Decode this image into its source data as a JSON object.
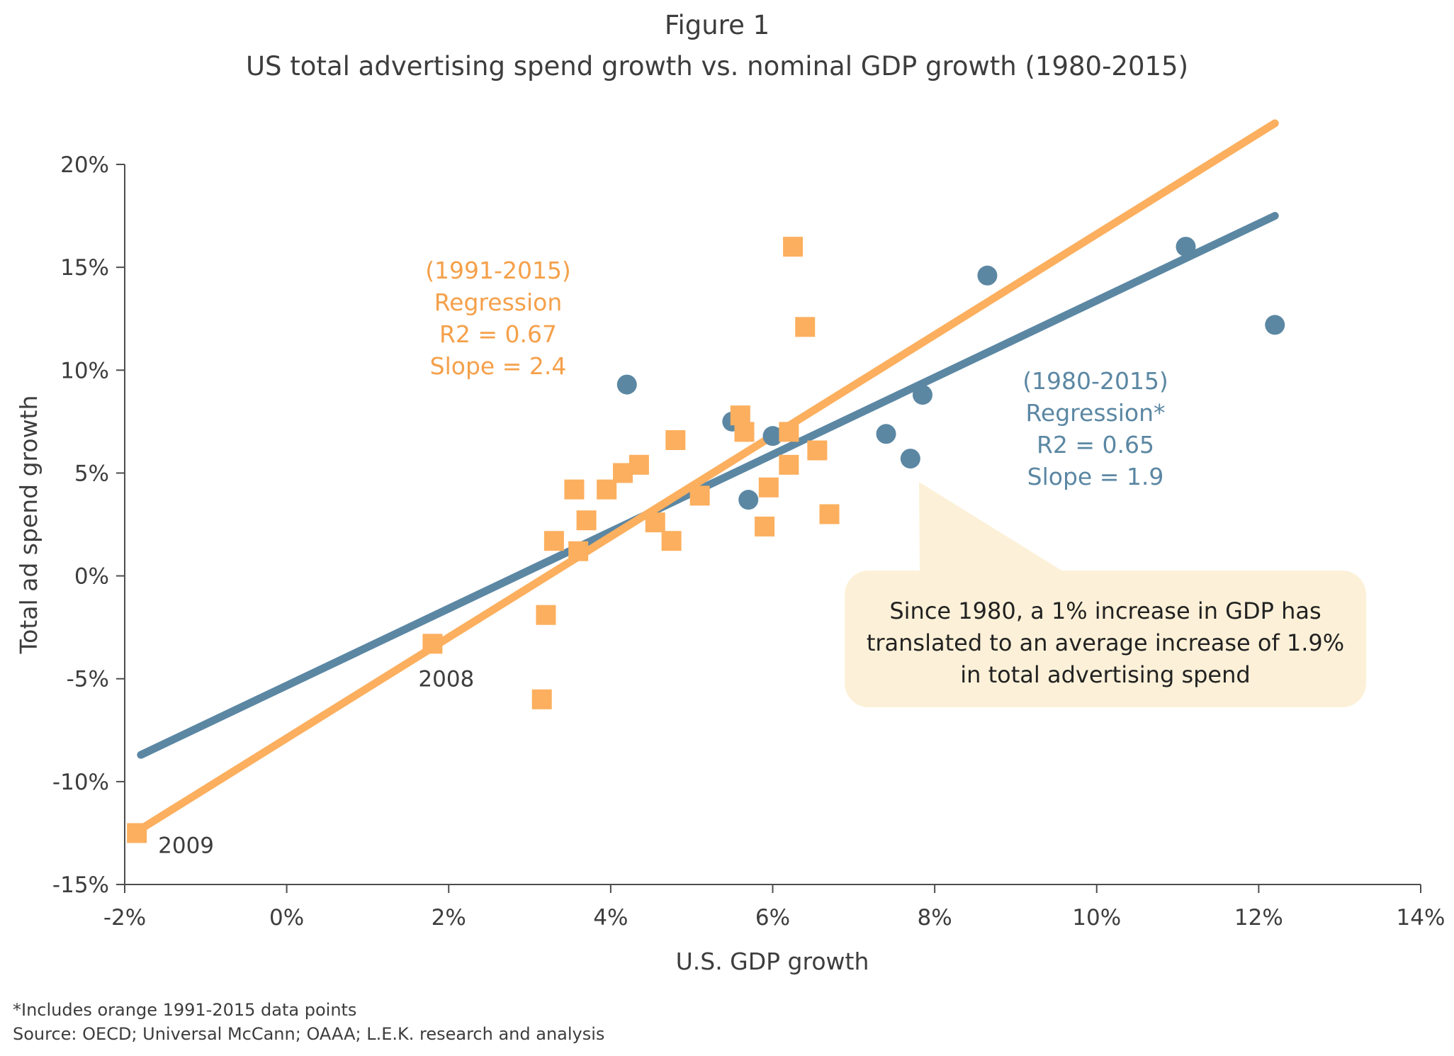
{
  "colors": {
    "orange": "#fcaf5e",
    "blue": "#5b87a3",
    "axis": "#4d4d4d",
    "callout_fill": "#fcf1d8"
  },
  "chart_data": {
    "type": "scatter",
    "title": "Figure 1",
    "subtitle": "US total advertising spend growth vs. nominal GDP growth (1980-2015)",
    "xlabel": "U.S. GDP growth",
    "ylabel": "Total ad spend growth",
    "xlim": [
      -2,
      14
    ],
    "ylim": [
      -15,
      20
    ],
    "x_ticks": [
      -2,
      0,
      2,
      4,
      6,
      8,
      10,
      12,
      14
    ],
    "x_tick_labels": [
      "-2%",
      "0%",
      "2%",
      "4%",
      "6%",
      "8%",
      "10%",
      "12%",
      "14%"
    ],
    "y_ticks": [
      20,
      15,
      10,
      5,
      0,
      -5,
      -10,
      -15
    ],
    "y_tick_labels": [
      "20%",
      "15%",
      "10%",
      "5%",
      "0%",
      "-5%",
      "-10%",
      "-15%"
    ],
    "grid": false,
    "legend": "none",
    "series": [
      {
        "marker": "circle",
        "color": "#5b87a3",
        "points": [
          [
            4.2,
            9.3
          ],
          [
            5.5,
            7.5
          ],
          [
            5.7,
            3.7
          ],
          [
            6.0,
            6.8
          ],
          [
            7.4,
            6.9
          ],
          [
            7.7,
            5.7
          ],
          [
            7.85,
            8.8
          ],
          [
            8.65,
            14.6
          ],
          [
            11.1,
            16.0
          ],
          [
            12.2,
            12.2
          ]
        ]
      },
      {
        "marker": "square",
        "color": "#fcaf5e",
        "points": [
          [
            -1.85,
            -12.5
          ],
          [
            1.8,
            -3.3
          ],
          [
            3.15,
            -6.0
          ],
          [
            3.2,
            -1.9
          ],
          [
            3.3,
            1.7
          ],
          [
            3.55,
            4.2
          ],
          [
            3.6,
            1.2
          ],
          [
            3.7,
            2.7
          ],
          [
            3.95,
            4.2
          ],
          [
            4.15,
            5.0
          ],
          [
            4.35,
            5.4
          ],
          [
            4.55,
            2.6
          ],
          [
            4.75,
            1.7
          ],
          [
            4.8,
            6.6
          ],
          [
            5.1,
            3.9
          ],
          [
            5.6,
            7.8
          ],
          [
            5.65,
            7.0
          ],
          [
            5.9,
            2.4
          ],
          [
            5.95,
            4.3
          ],
          [
            6.2,
            5.4
          ],
          [
            6.2,
            7.0
          ],
          [
            6.25,
            16.0
          ],
          [
            6.4,
            12.1
          ],
          [
            6.55,
            6.1
          ],
          [
            6.7,
            3.0
          ]
        ]
      }
    ],
    "regression_lines": [
      {
        "label": "(1980-2015) Regression*",
        "color": "#5b87a3",
        "start": [
          -1.8,
          -8.7
        ],
        "end": [
          12.2,
          17.5
        ]
      },
      {
        "label": "(1991-2015) Regression",
        "color": "#fcaf5e",
        "start": [
          -1.8,
          -12.3
        ],
        "end": [
          12.2,
          22.0
        ]
      }
    ],
    "annotations": {
      "orange_regression": [
        "(1991-2015)",
        "Regression",
        "R2 = 0.67",
        "Slope = 2.4"
      ],
      "blue_regression": [
        "(1980-2015)",
        "Regression*",
        "R2 = 0.65",
        "Slope = 1.9"
      ],
      "point_labels": [
        {
          "text": "2008",
          "x": 1.8,
          "y": -3.3
        },
        {
          "text": "2009",
          "x": -1.85,
          "y": -12.5
        }
      ],
      "callout": [
        "Since 1980, a 1% increase in GDP has",
        "translated to an average increase of 1.9%",
        "in total advertising spend"
      ]
    },
    "footnotes": [
      "*Includes orange 1991-2015 data points",
      "Source: OECD; Universal McCann; OAAA; L.E.K. research and analysis"
    ]
  }
}
